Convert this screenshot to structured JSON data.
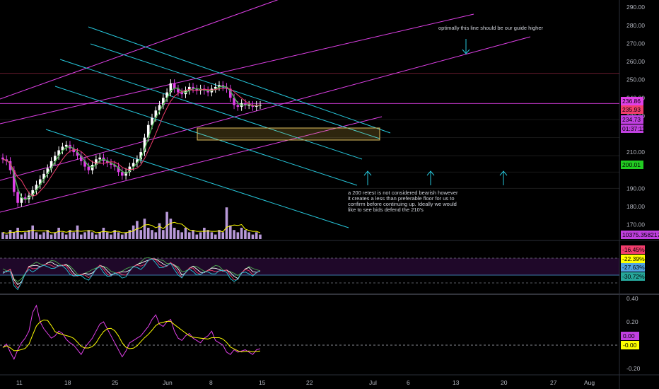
{
  "chart_data": {
    "type": "candlestick",
    "symbol": "",
    "price_axis": {
      "ticks": [
        290,
        280,
        270,
        260,
        250,
        240,
        230,
        210,
        190,
        180,
        170
      ],
      "tick_labels": [
        "290.00",
        "280.00",
        "270.00",
        "260.00",
        "250.00",
        "240.00",
        "230.00",
        "210.00",
        "190.00",
        "180.00",
        "170.00"
      ],
      "range": [
        162,
        294
      ]
    },
    "time_axis": {
      "ticks": [
        "11",
        "18",
        "25",
        "Jun",
        "8",
        "15",
        "22",
        "Jul",
        "6",
        "13",
        "20",
        "27",
        "Aug"
      ]
    },
    "price_tags": [
      {
        "label": "236.86",
        "value": 236.86,
        "bg": "#e040e8",
        "fg": "#000000"
      },
      {
        "label": "235.93",
        "value": 235.93,
        "bg": "#f23d6d",
        "fg": "#000000"
      },
      {
        "label": "234.73",
        "value": 234.73,
        "bg": "#c040e0",
        "fg": "#000000"
      },
      {
        "label": "01:37:11",
        "value": 231.0,
        "bg": "#c040e0",
        "fg": "#000000"
      },
      {
        "label": "200.01",
        "value": 200.01,
        "bg": "#22cc22",
        "fg": "#000000"
      },
      {
        "label": "10375.3582177",
        "value": 163.3,
        "bg": "#c040e0",
        "fg": "#000000"
      }
    ],
    "annotations": [
      {
        "text": "optimally this line should be our guide higher"
      },
      {
        "text": "a 200 retest is not considered bearish however it creates a less than preferable floor for us to confirm before continuing up. Ideally we would like to see bids defend the 210's"
      }
    ],
    "price_series": [
      206,
      205,
      200,
      188,
      182,
      185,
      184,
      186,
      189,
      192,
      195,
      198,
      201,
      205,
      208,
      211,
      213,
      214,
      212,
      210,
      208,
      205,
      202,
      200,
      203,
      206,
      207,
      205,
      204,
      203,
      202,
      199,
      197,
      199,
      202,
      204,
      206,
      210,
      218,
      225,
      229,
      233,
      236,
      240,
      243,
      248,
      245,
      243,
      242,
      244,
      246,
      245,
      244,
      245,
      244,
      243,
      245,
      246,
      247,
      246,
      245,
      240,
      236,
      235,
      237,
      236,
      236,
      235,
      236,
      236
    ],
    "volume_series": [
      3,
      2,
      4,
      3,
      5,
      2,
      3,
      4,
      6,
      3,
      2,
      3,
      4,
      2,
      3,
      5,
      3,
      2,
      4,
      3,
      6,
      2,
      3,
      4,
      3,
      2,
      3,
      5,
      3,
      2,
      4,
      3,
      2,
      3,
      4,
      6,
      8,
      4,
      9,
      5,
      4,
      3,
      7,
      4,
      12,
      9,
      5,
      4,
      3,
      5,
      3,
      4,
      2,
      3,
      5,
      4,
      3,
      2,
      4,
      3,
      14,
      6,
      4,
      3,
      5,
      4,
      3,
      2,
      3,
      2
    ],
    "oscillator1": {
      "labels": [
        "-16.45%",
        "-22.39%",
        "-27.63%",
        "-30.72%"
      ],
      "label_colors": [
        "#f23d6d",
        "#ffff00",
        "#4fa3e0",
        "#26a69a"
      ]
    },
    "oscillator2": {
      "ticks": [
        "0.40",
        "0.20",
        "0.00",
        "-0.20"
      ],
      "labels": [
        {
          "text": "0.00",
          "bg": "#c040e0"
        },
        {
          "text": "-0.00",
          "bg": "#ffff00"
        }
      ],
      "series": [
        -0.02,
        0.01,
        -0.06,
        -0.12,
        -0.04,
        0.02,
        0.06,
        0.12,
        0.28,
        0.34,
        0.2,
        0.14,
        0.1,
        0.06,
        0.08,
        0.12,
        0.1,
        0.05,
        0.02,
        0.0,
        -0.04,
        -0.08,
        -0.02,
        0.02,
        0.06,
        0.12,
        0.18,
        0.2,
        0.14,
        0.08,
        0.02,
        -0.04,
        -0.1,
        -0.05,
        0.02,
        0.04,
        0.06,
        0.08,
        0.12,
        0.16,
        0.22,
        0.26,
        0.18,
        0.16,
        0.2,
        0.22,
        0.12,
        0.06,
        0.04,
        0.08,
        0.1,
        0.06,
        0.04,
        0.02,
        0.06,
        0.08,
        0.12,
        0.04,
        0.02,
        0.0,
        -0.06,
        -0.08,
        -0.04,
        -0.06,
        -0.05,
        -0.04,
        -0.06,
        -0.08,
        -0.04,
        -0.03
      ]
    }
  }
}
